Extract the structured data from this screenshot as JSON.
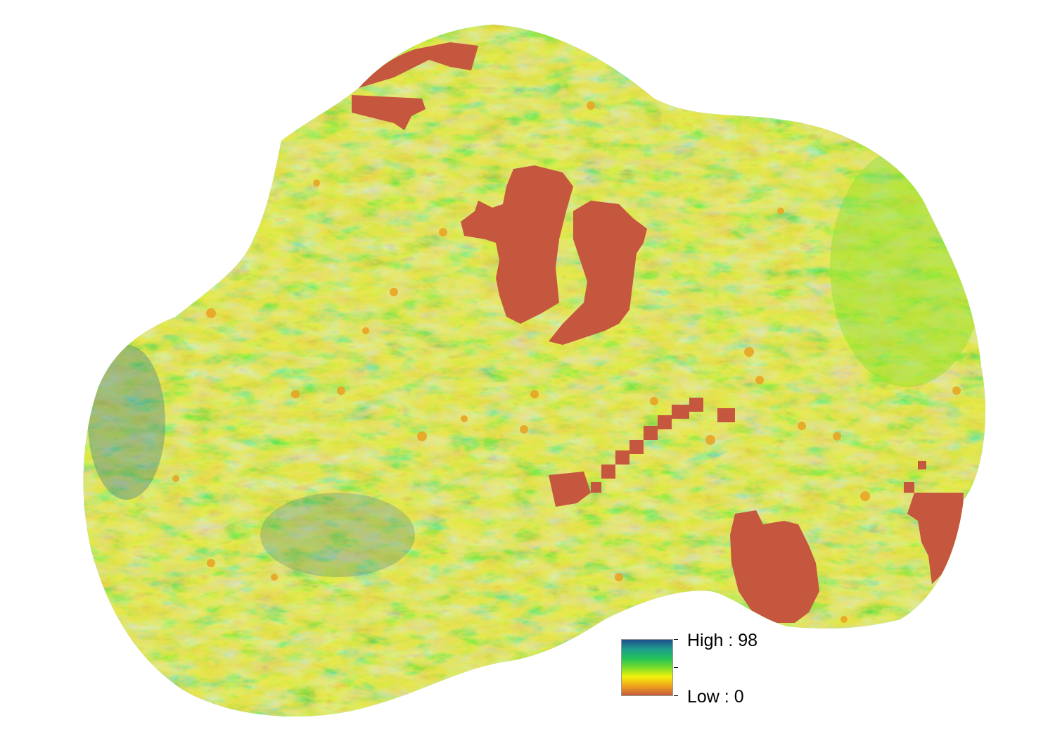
{
  "legend": {
    "high_label": "High : 98",
    "low_label": "Low : 0",
    "ramp_colors": [
      "#1f4f8c",
      "#1f9c8c",
      "#22c25a",
      "#78dc2a",
      "#f2f20a",
      "#f0a21c",
      "#c45a3c"
    ]
  },
  "map": {
    "masked_color": "#c4573d",
    "palette": {
      "dark_blue": "#2b6f8c",
      "teal": "#22a58a",
      "green": "#2fc24a",
      "light_green": "#7fd92c",
      "yellow": "#f0ef1a",
      "orange": "#e8a524",
      "red": "#c4573d"
    }
  }
}
